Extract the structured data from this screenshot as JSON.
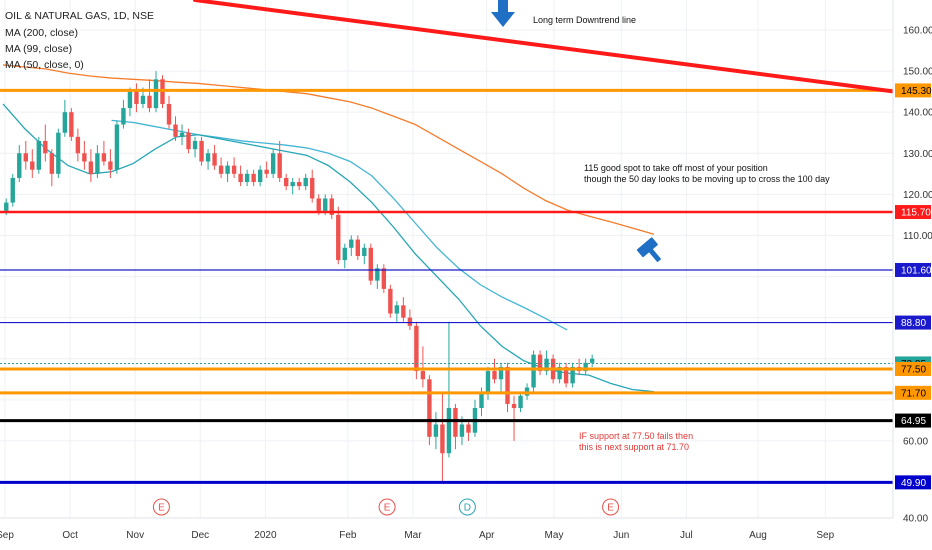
{
  "header": {
    "symbol_line": "OIL & NATURAL GAS, 1D, NSE",
    "indicators": [
      "MA (200, close)",
      "MA (99, close)",
      "MA (50, close, 0)"
    ]
  },
  "chart_data": {
    "type": "candlestick",
    "x_tick_labels": [
      "Sep",
      "Oct",
      "Nov",
      "Dec",
      "2020",
      "Feb",
      "Mar",
      "Apr",
      "May",
      "Jun",
      "Jul",
      "Aug",
      "Sep"
    ],
    "y_tick_labels": [
      "160.00",
      "150.00",
      "140.00",
      "130.00",
      "120.00",
      "110.00",
      "60.00",
      "40.00"
    ],
    "ylim": [
      40,
      166
    ],
    "grid": true,
    "horizontal_levels": [
      {
        "label": "145.30",
        "value": 145.3,
        "color": "#ff9800"
      },
      {
        "label": "115.70",
        "value": 115.7,
        "color": "#ff1a1a"
      },
      {
        "label": "101.60",
        "value": 101.6,
        "color": "#1a1acc"
      },
      {
        "label": "88.80",
        "value": 88.8,
        "color": "#1a1acc"
      },
      {
        "label": "78.85",
        "value": 78.85,
        "color": "#26a69a"
      },
      {
        "label": "77.50",
        "value": 77.5,
        "color": "#ff9800"
      },
      {
        "label": "71.70",
        "value": 71.7,
        "color": "#ff9800"
      },
      {
        "label": "64.95",
        "value": 64.95,
        "color": "#000000"
      },
      {
        "label": "49.90",
        "value": 49.9,
        "color": "#0000cc"
      }
    ],
    "downtrend_line": {
      "start": 170,
      "end": 145.3,
      "color": "#ff1a1a"
    },
    "series": [
      {
        "name": "MA (200, close)",
        "color": "#f57c2b",
        "values": [
          151.5,
          151,
          150.5,
          149.5,
          148.8,
          148.3,
          148,
          147.7,
          147.3,
          147,
          146.5,
          146,
          145.5,
          145,
          144.5,
          143.5,
          142.5,
          141,
          139,
          137,
          134,
          131,
          128,
          125,
          121.5,
          118.5,
          116.2,
          114.7,
          113.3,
          111.8,
          110.3
        ]
      },
      {
        "name": "MA (99, close)",
        "color": "#45b5d6",
        "values": [
          null,
          null,
          null,
          null,
          null,
          138,
          137.5,
          136.5,
          135.5,
          134.5,
          133.8,
          133,
          132.5,
          132,
          131.3,
          130,
          128,
          124.5,
          119,
          113,
          107,
          102,
          98,
          95,
          92.5,
          89.8,
          87
        ]
      },
      {
        "name": "MA (50, close, 0)",
        "color": "#26a6b5",
        "values": [
          142,
          136,
          131,
          127,
          125,
          125.5,
          127.5,
          131,
          134,
          134.5,
          133.5,
          132.5,
          131.5,
          130.5,
          129.5,
          127,
          123,
          118,
          112,
          105.5,
          100,
          94.5,
          88,
          83,
          79.5,
          77.5,
          76.5,
          76,
          74,
          72.5,
          72
        ]
      }
    ],
    "candles": [
      {
        "x": [
          0,
          0.3
        ],
        "o": 116,
        "h": 119,
        "l": 115,
        "c": 118
      },
      {
        "x": [
          0.3,
          0.6
        ],
        "o": 118,
        "h": 125,
        "l": 117,
        "c": 124
      },
      {
        "x": [
          0.6,
          0.9
        ],
        "o": 124,
        "h": 132,
        "l": 123,
        "c": 130
      },
      {
        "x": [
          0.9,
          1.2
        ],
        "o": 130,
        "h": 133,
        "l": 126,
        "c": 128
      },
      {
        "x": [
          1.2,
          1.5
        ],
        "o": 128,
        "h": 131,
        "l": 124,
        "c": 126
      },
      {
        "x": [
          1.5,
          1.8
        ],
        "o": 126,
        "h": 134,
        "l": 125,
        "c": 133
      },
      {
        "x": [
          1.8,
          2.1
        ],
        "o": 133,
        "h": 137,
        "l": 128,
        "c": 130
      },
      {
        "x": [
          2.1,
          2.4
        ],
        "o": 130,
        "h": 131,
        "l": 122,
        "c": 125
      },
      {
        "x": [
          2.4,
          2.7
        ],
        "o": 125,
        "h": 136,
        "l": 124,
        "c": 135
      },
      {
        "x": [
          2.7,
          3.0
        ],
        "o": 135,
        "h": 143,
        "l": 134,
        "c": 140
      },
      {
        "x": [
          3.0,
          3.3
        ],
        "o": 140,
        "h": 141,
        "l": 133,
        "c": 134
      },
      {
        "x": [
          3.3,
          3.6
        ],
        "o": 134,
        "h": 136,
        "l": 128,
        "c": 130
      },
      {
        "x": [
          3.6,
          3.9
        ],
        "o": 130,
        "h": 133,
        "l": 126,
        "c": 128
      },
      {
        "x": [
          3.9,
          4.2
        ],
        "o": 128,
        "h": 131,
        "l": 123,
        "c": 125
      },
      {
        "x": [
          4.2,
          4.5
        ],
        "o": 125,
        "h": 132,
        "l": 124,
        "c": 130
      },
      {
        "x": [
          4.5,
          4.8
        ],
        "o": 130,
        "h": 133,
        "l": 127,
        "c": 128
      },
      {
        "x": [
          4.8,
          5.1
        ],
        "o": 128,
        "h": 131,
        "l": 124,
        "c": 126
      },
      {
        "x": [
          5.1,
          5.4
        ],
        "o": 126,
        "h": 138,
        "l": 125,
        "c": 137
      },
      {
        "x": [
          5.4,
          5.7
        ],
        "o": 137,
        "h": 143,
        "l": 136,
        "c": 141
      },
      {
        "x": [
          5.7,
          6.0
        ],
        "o": 141,
        "h": 146,
        "l": 139,
        "c": 145
      },
      {
        "x": [
          6.0,
          6.3
        ],
        "o": 145,
        "h": 147,
        "l": 140,
        "c": 142
      },
      {
        "x": [
          6.3,
          6.6
        ],
        "o": 142,
        "h": 146,
        "l": 141,
        "c": 144
      },
      {
        "x": [
          6.6,
          6.9
        ],
        "o": 144,
        "h": 148,
        "l": 140,
        "c": 141
      },
      {
        "x": [
          6.9,
          7.2
        ],
        "o": 141,
        "h": 150,
        "l": 140,
        "c": 148
      },
      {
        "x": [
          7.2,
          7.5
        ],
        "o": 148,
        "h": 149,
        "l": 141,
        "c": 142
      },
      {
        "x": [
          7.5,
          7.8
        ],
        "o": 142,
        "h": 144,
        "l": 136,
        "c": 137
      },
      {
        "x": [
          7.8,
          8.1
        ],
        "o": 137,
        "h": 139,
        "l": 133,
        "c": 134
      },
      {
        "x": [
          8.1,
          8.4
        ],
        "o": 134,
        "h": 137,
        "l": 132,
        "c": 135
      },
      {
        "x": [
          8.4,
          8.7
        ],
        "o": 135,
        "h": 136,
        "l": 130,
        "c": 131
      },
      {
        "x": [
          8.7,
          9.0
        ],
        "o": 131,
        "h": 134,
        "l": 129,
        "c": 133
      },
      {
        "x": [
          9.0,
          9.3
        ],
        "o": 133,
        "h": 134,
        "l": 127,
        "c": 128
      },
      {
        "x": [
          9.3,
          9.6
        ],
        "o": 128,
        "h": 131,
        "l": 126,
        "c": 130
      },
      {
        "x": [
          9.6,
          9.9
        ],
        "o": 130,
        "h": 132,
        "l": 126,
        "c": 127
      },
      {
        "x": [
          9.9,
          10.2
        ],
        "o": 127,
        "h": 129,
        "l": 124,
        "c": 125
      },
      {
        "x": [
          10.2,
          10.5
        ],
        "o": 125,
        "h": 128,
        "l": 123,
        "c": 127
      },
      {
        "x": [
          10.5,
          10.8
        ],
        "o": 127,
        "h": 129,
        "l": 124,
        "c": 125
      },
      {
        "x": [
          10.8,
          11.1
        ],
        "o": 125,
        "h": 127,
        "l": 122,
        "c": 123
      },
      {
        "x": [
          11.1,
          11.4
        ],
        "o": 123,
        "h": 126,
        "l": 122,
        "c": 125
      },
      {
        "x": [
          11.4,
          11.7
        ],
        "o": 125,
        "h": 126,
        "l": 122,
        "c": 123
      },
      {
        "x": [
          11.7,
          12.0
        ],
        "o": 123,
        "h": 127,
        "l": 122,
        "c": 126
      },
      {
        "x": [
          12.0,
          12.3
        ],
        "o": 126,
        "h": 128,
        "l": 124,
        "c": 125
      },
      {
        "x": [
          12.3,
          12.6
        ],
        "o": 125,
        "h": 131,
        "l": 124,
        "c": 130
      },
      {
        "x": [
          12.6,
          12.9
        ],
        "o": 130,
        "h": 133,
        "l": 123,
        "c": 124
      },
      {
        "x": [
          12.9,
          13.2
        ],
        "o": 124,
        "h": 125,
        "l": 121,
        "c": 122
      },
      {
        "x": [
          13.2,
          13.5
        ],
        "o": 122,
        "h": 124,
        "l": 120,
        "c": 123
      },
      {
        "x": [
          13.5,
          13.8
        ],
        "o": 123,
        "h": 124,
        "l": 121,
        "c": 122
      },
      {
        "x": [
          13.8,
          14.1
        ],
        "o": 122,
        "h": 125,
        "l": 121,
        "c": 124
      },
      {
        "x": [
          14.1,
          14.4
        ],
        "o": 124,
        "h": 126,
        "l": 118,
        "c": 119
      },
      {
        "x": [
          14.4,
          14.7
        ],
        "o": 119,
        "h": 120,
        "l": 115,
        "c": 116
      },
      {
        "x": [
          14.7,
          15.0
        ],
        "o": 116,
        "h": 120,
        "l": 115,
        "c": 119
      },
      {
        "x": [
          15.0,
          15.3
        ],
        "o": 119,
        "h": 120,
        "l": 114,
        "c": 115
      },
      {
        "x": [
          15.3,
          15.6
        ],
        "o": 115,
        "h": 117,
        "l": 103,
        "c": 104
      },
      {
        "x": [
          15.6,
          15.9
        ],
        "o": 104,
        "h": 108,
        "l": 102,
        "c": 107
      },
      {
        "x": [
          15.9,
          16.2
        ],
        "o": 107,
        "h": 110,
        "l": 105,
        "c": 109
      },
      {
        "x": [
          16.2,
          16.5
        ],
        "o": 109,
        "h": 110,
        "l": 104,
        "c": 105
      },
      {
        "x": [
          16.5,
          16.8
        ],
        "o": 105,
        "h": 108,
        "l": 103,
        "c": 107
      },
      {
        "x": [
          16.8,
          17.1
        ],
        "o": 107,
        "h": 108,
        "l": 98,
        "c": 99
      },
      {
        "x": [
          17.1,
          17.4
        ],
        "o": 99,
        "h": 103,
        "l": 97,
        "c": 102
      },
      {
        "x": [
          17.4,
          17.7
        ],
        "o": 102,
        "h": 103,
        "l": 96,
        "c": 97
      },
      {
        "x": [
          17.7,
          18.0
        ],
        "o": 97,
        "h": 98,
        "l": 90,
        "c": 91
      },
      {
        "x": [
          18.0,
          18.3
        ],
        "o": 91,
        "h": 94,
        "l": 89,
        "c": 93
      },
      {
        "x": [
          18.3,
          18.6
        ],
        "o": 93,
        "h": 95,
        "l": 89,
        "c": 90
      },
      {
        "x": [
          18.6,
          18.9
        ],
        "o": 90,
        "h": 92,
        "l": 87,
        "c": 88
      },
      {
        "x": [
          18.9,
          19.2
        ],
        "o": 88,
        "h": 89,
        "l": 75,
        "c": 77
      },
      {
        "x": [
          19.2,
          19.5
        ],
        "o": 77,
        "h": 83,
        "l": 73,
        "c": 75
      },
      {
        "x": [
          19.5,
          19.8
        ],
        "o": 75,
        "h": 76,
        "l": 59,
        "c": 61
      },
      {
        "x": [
          19.8,
          20.1
        ],
        "o": 61,
        "h": 67,
        "l": 58,
        "c": 64
      },
      {
        "x": [
          20.1,
          20.4
        ],
        "o": 64,
        "h": 72,
        "l": 50,
        "c": 57
      },
      {
        "x": [
          20.4,
          20.7
        ],
        "o": 57,
        "h": 89,
        "l": 56,
        "c": 68
      },
      {
        "x": [
          20.7,
          21.0
        ],
        "o": 68,
        "h": 69,
        "l": 58,
        "c": 61
      },
      {
        "x": [
          21.0,
          21.3
        ],
        "o": 61,
        "h": 66,
        "l": 59,
        "c": 64
      },
      {
        "x": [
          21.3,
          21.6
        ],
        "o": 64,
        "h": 65,
        "l": 60,
        "c": 62
      },
      {
        "x": [
          21.6,
          21.9
        ],
        "o": 62,
        "h": 70,
        "l": 61,
        "c": 68
      },
      {
        "x": [
          21.9,
          22.2
        ],
        "o": 68,
        "h": 73,
        "l": 66,
        "c": 72
      },
      {
        "x": [
          22.2,
          22.5
        ],
        "o": 72,
        "h": 78,
        "l": 70,
        "c": 77
      },
      {
        "x": [
          22.5,
          22.8
        ],
        "o": 77,
        "h": 80,
        "l": 74,
        "c": 75
      },
      {
        "x": [
          22.8,
          23.1
        ],
        "o": 75,
        "h": 79,
        "l": 72,
        "c": 78
      },
      {
        "x": [
          23.1,
          23.4
        ],
        "o": 78,
        "h": 79,
        "l": 67,
        "c": 69
      },
      {
        "x": [
          23.4,
          23.7
        ],
        "o": 69,
        "h": 71,
        "l": 60,
        "c": 68
      },
      {
        "x": [
          23.7,
          24.0
        ],
        "o": 68,
        "h": 72,
        "l": 67,
        "c": 71
      },
      {
        "x": [
          24.0,
          24.3
        ],
        "o": 71,
        "h": 74,
        "l": 70,
        "c": 73
      },
      {
        "x": [
          24.3,
          24.6
        ],
        "o": 73,
        "h": 82,
        "l": 72,
        "c": 81
      },
      {
        "x": [
          24.6,
          24.9
        ],
        "o": 81,
        "h": 82,
        "l": 76,
        "c": 77
      },
      {
        "x": [
          24.9,
          25.2
        ],
        "o": 77,
        "h": 82,
        "l": 76,
        "c": 80
      },
      {
        "x": [
          25.2,
          25.5
        ],
        "o": 80,
        "h": 81,
        "l": 74,
        "c": 75
      },
      {
        "x": [
          25.5,
          25.8
        ],
        "o": 75,
        "h": 79,
        "l": 74,
        "c": 78
      },
      {
        "x": [
          25.8,
          26.1
        ],
        "o": 78,
        "h": 79,
        "l": 73,
        "c": 74
      },
      {
        "x": [
          26.1,
          26.4
        ],
        "o": 74,
        "h": 79,
        "l": 73,
        "c": 78
      },
      {
        "x": [
          26.4,
          26.7
        ],
        "o": 78,
        "h": 80,
        "l": 76,
        "c": 77
      },
      {
        "x": [
          26.7,
          27.0
        ],
        "o": 77,
        "h": 80,
        "l": 76,
        "c": 79
      },
      {
        "x": [
          27.0,
          27.3
        ],
        "o": 79,
        "h": 81,
        "l": 78,
        "c": 80
      }
    ],
    "event_markers": [
      {
        "label": "E",
        "x": 7.3,
        "color": "#e5534b"
      },
      {
        "label": "E",
        "x": 17.7,
        "color": "#e5534b"
      },
      {
        "label": "D",
        "x": 21.4,
        "color": "#2aa3b5"
      },
      {
        "label": "E",
        "x": 28.0,
        "color": "#e5534b"
      }
    ]
  },
  "annotations": {
    "downtrend_note": "Long term Downtrend line",
    "spot_note_line1": "115 good spot to take off most of your position",
    "spot_note_line2": "though the 50 day looks to be moving up to cross the 100 day",
    "support_note_line1": "IF support at 77.50 fails then",
    "support_note_line2": "this is next support at 71.70"
  },
  "icons": {
    "arrow": "down-arrow-icon",
    "hammer": "gavel-icon"
  },
  "colors": {
    "up_candle": "#26a69a",
    "down_candle": "#ef5350",
    "annotation_red": "#e53935",
    "arrow_blue": "#1f6fc5"
  }
}
